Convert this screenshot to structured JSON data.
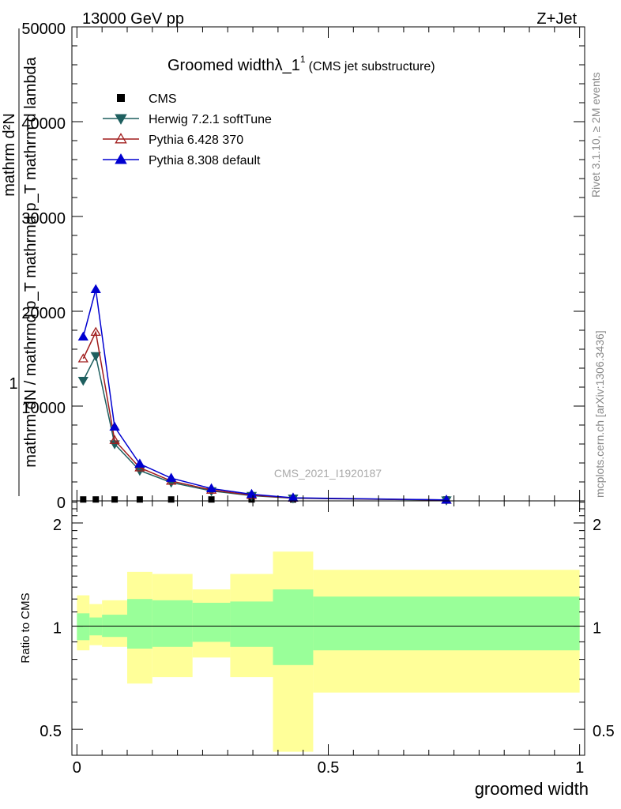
{
  "header": {
    "left": "13000 GeV pp",
    "right": "Z+Jet"
  },
  "side_labels": {
    "rivet": "Rivet 3.1.10, ≥ 2M events",
    "mcplots": "mcplots.cern.ch [arXiv:1306.3436]"
  },
  "chart_data": [
    {
      "type": "line",
      "title": "Groomed widthλ_1",
      "title_sup": "1",
      "subtitle": "(CMS jet substructure)",
      "watermark": "CMS_2021_I1920187",
      "ylabel_lines": [
        "1",
        "mathrm dN / mathrmd p_T mathrmd p_T mathrm d lambda",
        "mathrm d²N"
      ],
      "ylim": [
        0,
        50000
      ],
      "xlim": [
        -0.01,
        1.01
      ],
      "yticks": [
        0,
        10000,
        20000,
        30000,
        40000,
        50000
      ],
      "ytick_labels": [
        "0",
        "10000",
        "20000",
        "30000",
        "40000",
        "50000"
      ],
      "legend_position": "top-left",
      "x": [
        0.0125,
        0.0375,
        0.075,
        0.125,
        0.1875,
        0.2675,
        0.3475,
        0.43,
        0.735
      ],
      "series": [
        {
          "name": "CMS",
          "marker": "square",
          "color": "#000000",
          "values": [
            150,
            150,
            150,
            150,
            150,
            150,
            150,
            150,
            150
          ]
        },
        {
          "name": "Herwig 7.2.1 softTune",
          "marker": "triangle-down",
          "color": "#1e5f5f",
          "values": [
            12700,
            15300,
            6000,
            3200,
            1950,
            1050,
            550,
            280,
            80
          ]
        },
        {
          "name": "Pythia 6.428 370",
          "marker": "triangle-up-open",
          "color": "#a01c1c",
          "values": [
            15000,
            17800,
            6400,
            3500,
            2100,
            1150,
            600,
            300,
            90
          ]
        },
        {
          "name": "Pythia 8.308 default",
          "marker": "triangle-up",
          "color": "#0000d0",
          "values": [
            17300,
            22300,
            7800,
            3900,
            2400,
            1300,
            700,
            320,
            100
          ]
        }
      ]
    },
    {
      "type": "area",
      "ylabel": "Ratio to CMS",
      "xlabel": "groomed width",
      "xlim": [
        -0.01,
        1.01
      ],
      "ylim": [
        0.42,
        2.32
      ],
      "yscale": "log",
      "xticks": [
        0,
        0.5,
        1
      ],
      "xtick_labels": [
        "0",
        "0.5",
        "1"
      ],
      "yticks": [
        0.5,
        1,
        2
      ],
      "ytick_labels": [
        "0.5",
        "1",
        "2"
      ],
      "bin_edges": [
        0,
        0.025,
        0.05,
        0.1,
        0.15,
        0.23,
        0.305,
        0.39,
        0.47,
        1.0
      ],
      "stat_band": {
        "color": "#99ff99",
        "low": [
          0.91,
          0.94,
          0.93,
          0.86,
          0.87,
          0.9,
          0.87,
          0.77,
          0.85
        ],
        "high": [
          1.09,
          1.06,
          1.08,
          1.2,
          1.19,
          1.17,
          1.18,
          1.28,
          1.22
        ]
      },
      "syst_band": {
        "color": "#ffff99",
        "low": [
          0.85,
          0.88,
          0.87,
          0.68,
          0.71,
          0.81,
          0.71,
          0.43,
          0.64
        ],
        "high": [
          1.23,
          1.16,
          1.19,
          1.44,
          1.42,
          1.28,
          1.42,
          1.65,
          1.46
        ]
      },
      "reference_line": 1
    }
  ]
}
